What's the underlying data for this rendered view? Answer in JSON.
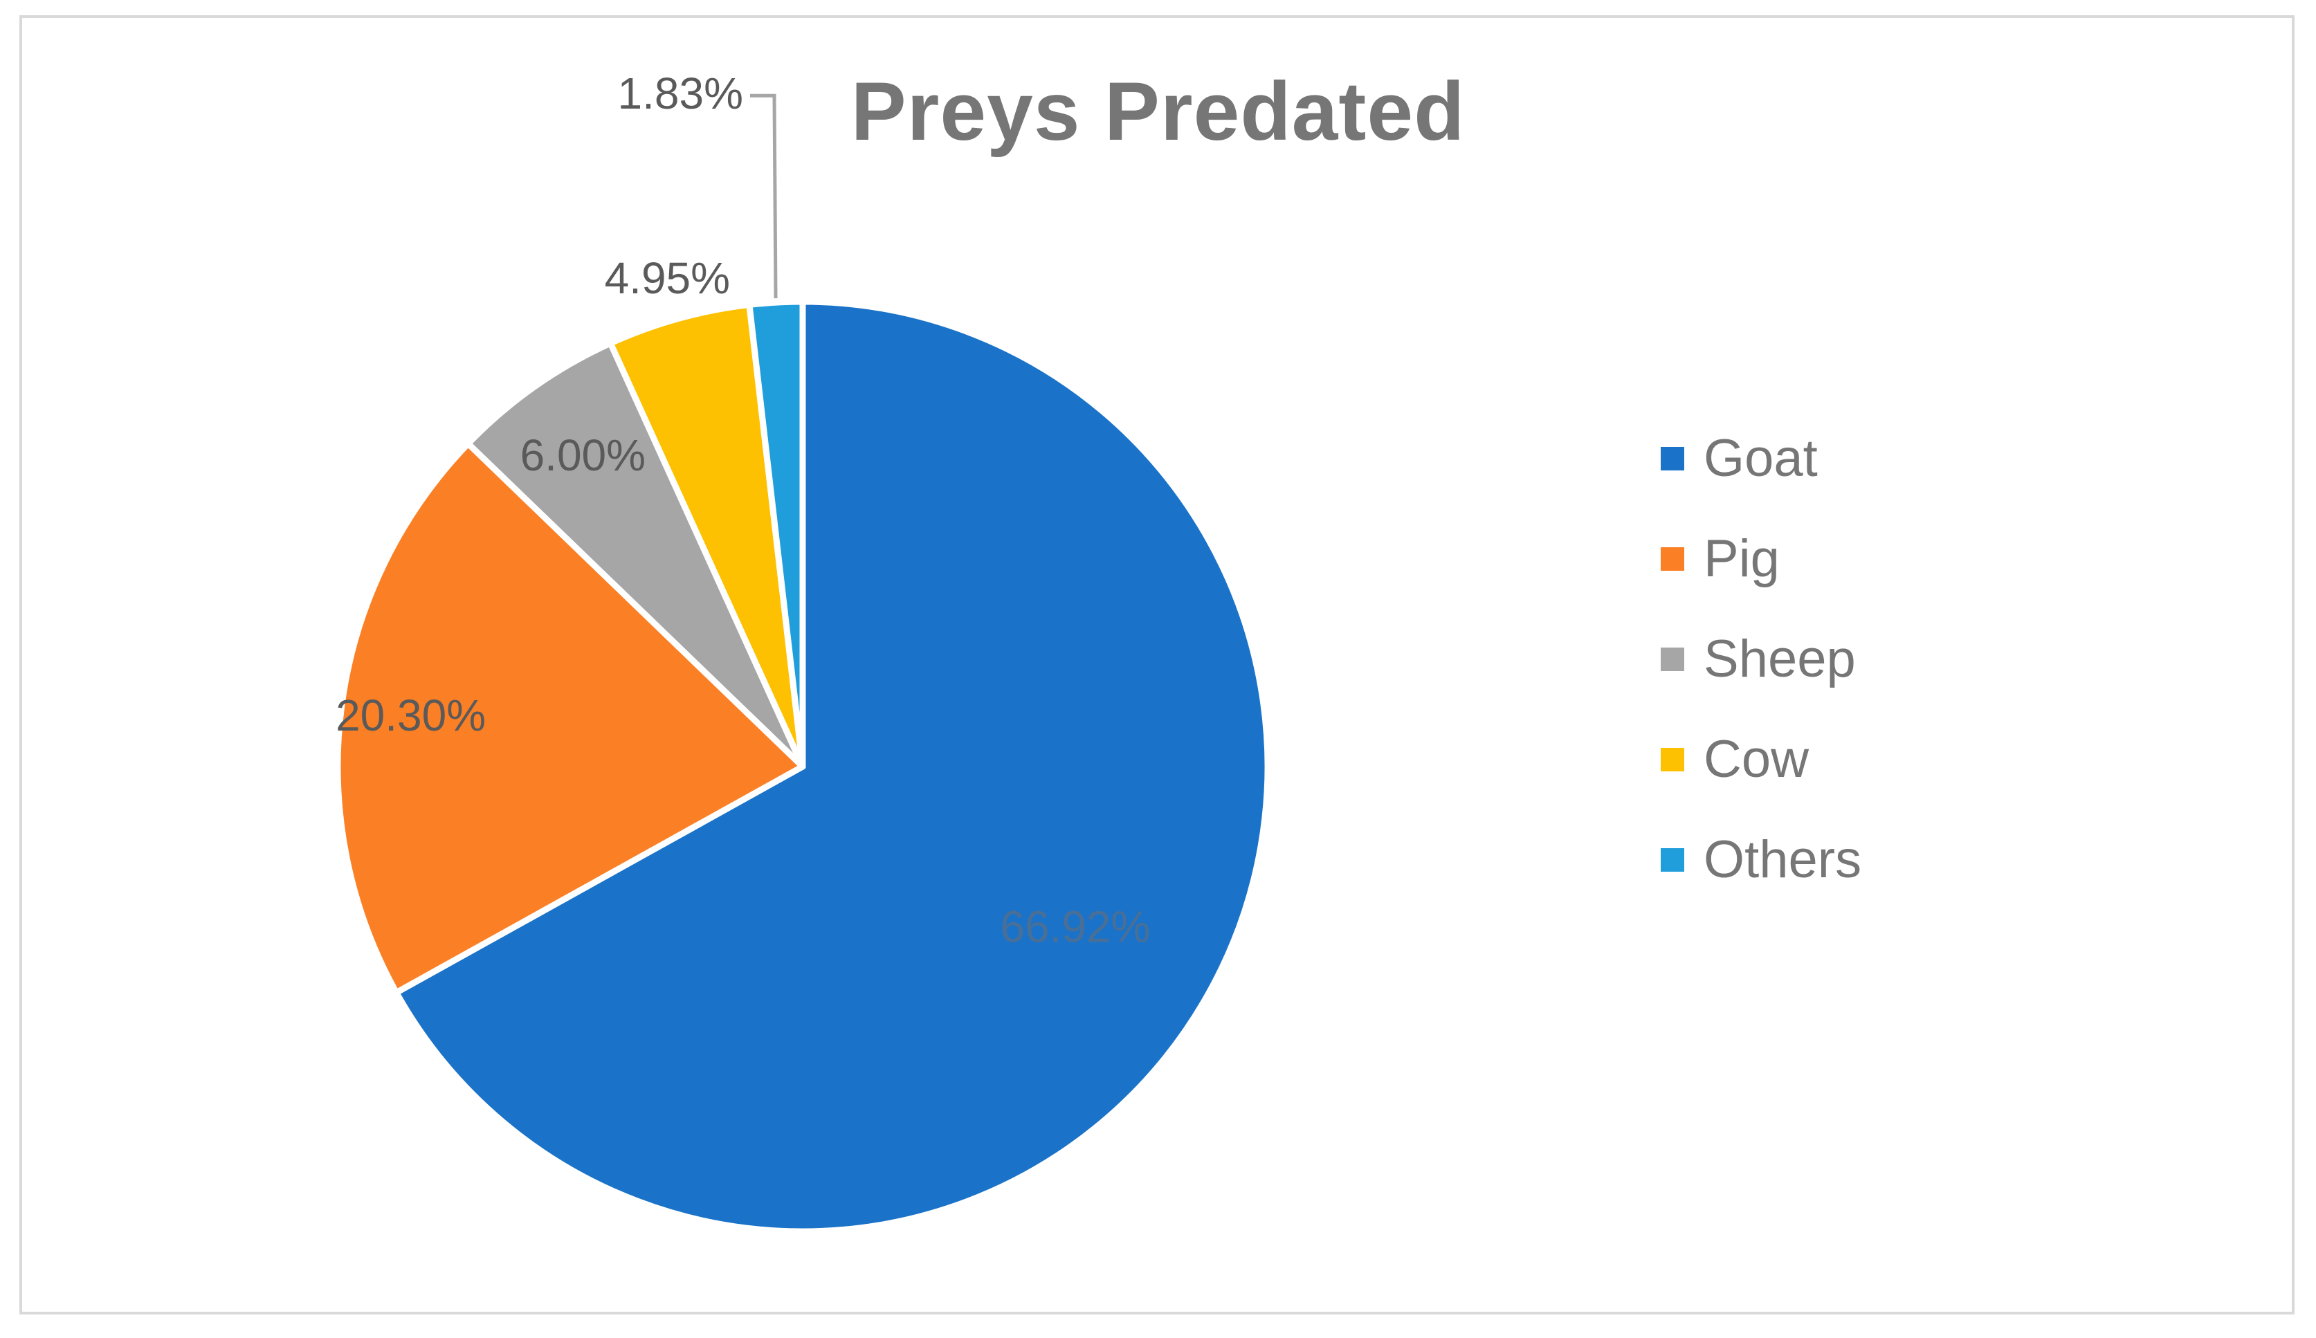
{
  "chart_data": {
    "type": "pie",
    "title": "Preys Predated",
    "categories": [
      "Goat",
      "Pig",
      "Sheep",
      "Cow",
      "Others"
    ],
    "values": [
      66.92,
      20.3,
      6.0,
      4.95,
      1.83
    ],
    "data_labels": [
      "66.92%",
      "20.30%",
      "6.00%",
      "4.95%",
      "1.83%"
    ],
    "colors": [
      "#1a73c8",
      "#fb7f24",
      "#a6a6a6",
      "#fdc102",
      "#209edb"
    ],
    "start_angle_deg": 0,
    "direction": "clockwise",
    "legend_position": "right",
    "label_color": "#5a5a5a",
    "goat_label_color": "#4a6f97"
  },
  "legend": {
    "items": [
      {
        "label": "Goat",
        "color": "#1a73c8"
      },
      {
        "label": "Pig",
        "color": "#fb7f24"
      },
      {
        "label": "Sheep",
        "color": "#a6a6a6"
      },
      {
        "label": "Cow",
        "color": "#fdc102"
      },
      {
        "label": "Others",
        "color": "#209edb"
      }
    ]
  }
}
